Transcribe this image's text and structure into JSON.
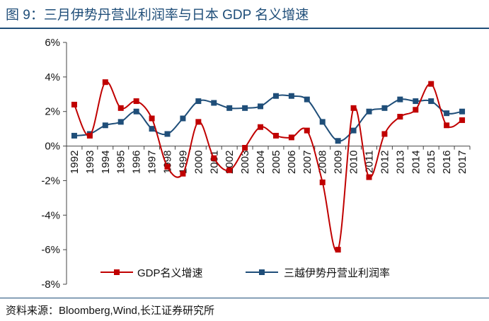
{
  "figure": {
    "title": "图 9：三月伊势丹营业利润率与日本 GDP 名义增速",
    "source": "资料来源：Bloomberg,Wind,长江证券研究所"
  },
  "chart_data": {
    "type": "line",
    "title": "三月伊势丹营业利润率与日本 GDP 名义增速",
    "xlabel": "",
    "ylabel": "",
    "ylim": [
      -8,
      6
    ],
    "yticks": [
      "6%",
      "4%",
      "2%",
      "0%",
      "-2%",
      "-4%",
      "-6%",
      "-8%"
    ],
    "ytick_values": [
      6,
      4,
      2,
      0,
      -2,
      -4,
      -6,
      -8
    ],
    "grid": false,
    "legend_position": "bottom",
    "categories": [
      "1992",
      "1993",
      "1994",
      "1995",
      "1996",
      "1997",
      "1998",
      "1999",
      "2000",
      "2001",
      "2002",
      "2003",
      "2004",
      "2005",
      "2006",
      "2007",
      "2008",
      "2009",
      "2010",
      "2011",
      "2012",
      "2013",
      "2014",
      "2015",
      "2016",
      "2017"
    ],
    "series": [
      {
        "name": "GDP名义增速",
        "color": "#c00000",
        "values": [
          2.4,
          0.6,
          3.7,
          2.2,
          2.6,
          1.6,
          -1.2,
          -1.6,
          1.4,
          -0.7,
          -1.4,
          -0.1,
          1.1,
          0.6,
          0.5,
          0.9,
          -2.1,
          -6.0,
          2.2,
          -1.8,
          0.7,
          1.7,
          2.1,
          3.6,
          1.2,
          1.5
        ]
      },
      {
        "name": "三越伊势丹营业利润率",
        "color": "#1f4e79",
        "values": [
          0.6,
          0.7,
          1.2,
          1.4,
          2.0,
          1.0,
          0.7,
          1.6,
          2.6,
          2.5,
          2.2,
          2.2,
          2.3,
          2.9,
          2.9,
          2.7,
          1.4,
          0.3,
          0.9,
          2.0,
          2.2,
          2.7,
          2.6,
          2.6,
          1.9,
          2.0
        ]
      }
    ]
  }
}
